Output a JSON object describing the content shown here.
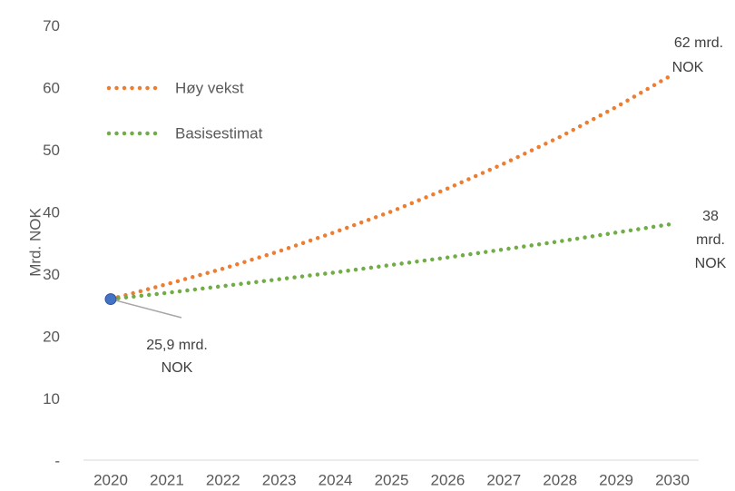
{
  "chart_data": {
    "type": "line",
    "y_label": "Mrd. NOK",
    "categories": [
      "2020",
      "2021",
      "2022",
      "2023",
      "2024",
      "2025",
      "2026",
      "2027",
      "2028",
      "2029",
      "2030"
    ],
    "series": [
      {
        "name": "Høy vekst",
        "color": "#ED7D31",
        "values": [
          25.9,
          28.3,
          30.8,
          33.6,
          36.7,
          40.0,
          43.7,
          47.7,
          52.0,
          56.8,
          62
        ]
      },
      {
        "name": "Basisestimat",
        "color": "#70AD47",
        "values": [
          25.9,
          26.9,
          28.0,
          29.1,
          30.2,
          31.4,
          32.6,
          33.9,
          35.2,
          36.6,
          38
        ]
      }
    ],
    "ylim": [
      0,
      70
    ],
    "yticks": [
      {
        "value": 0,
        "label": "-"
      },
      10,
      20,
      30,
      40,
      50,
      60,
      70
    ],
    "grid": false,
    "marker_color": "#4472C4",
    "annotations": [
      {
        "lines": [
          "62 mrd.",
          "NOK"
        ]
      },
      {
        "lines": [
          "38",
          "mrd.",
          "NOK"
        ]
      },
      {
        "lines": [
          "25,9 mrd.",
          "NOK"
        ]
      }
    ]
  }
}
